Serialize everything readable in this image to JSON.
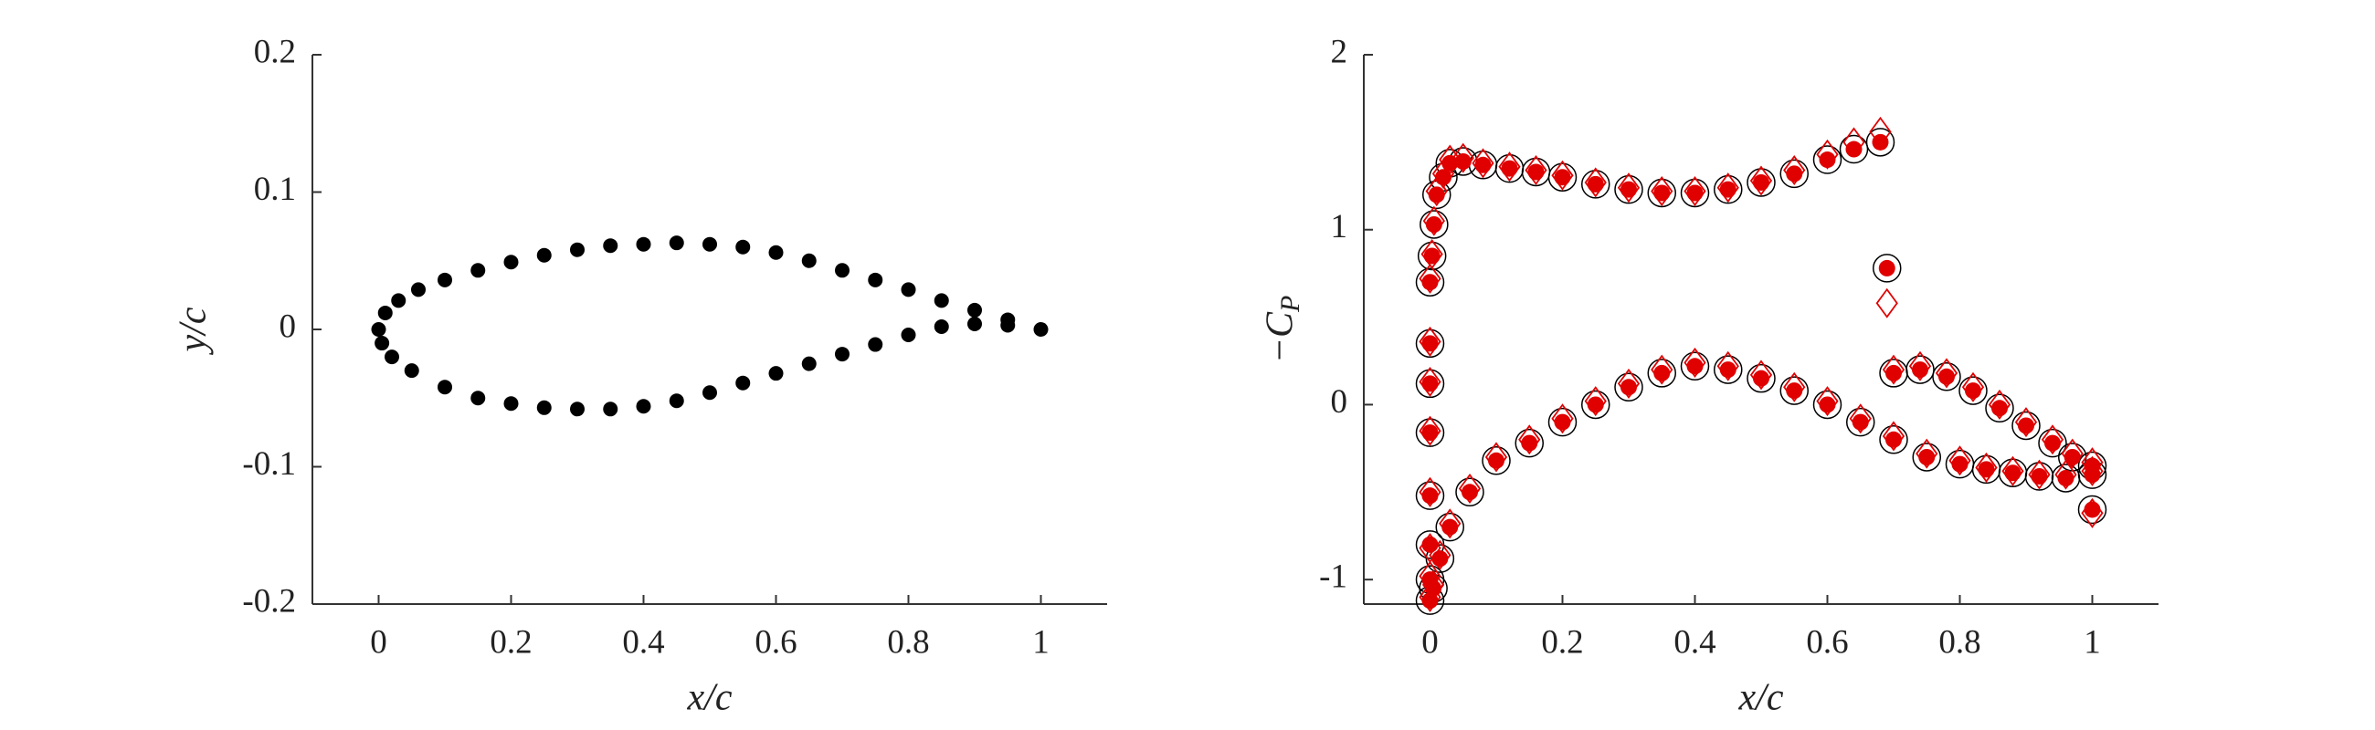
{
  "chart_data": [
    {
      "type": "scatter",
      "xlabel": "x/c",
      "ylabel": "y/c",
      "xlim": [
        -0.1,
        1.1
      ],
      "ylim": [
        -0.2,
        0.2
      ],
      "xticks": [
        0,
        0.2,
        0.4,
        0.6,
        0.8,
        1
      ],
      "yticks": [
        -0.2,
        -0.1,
        0,
        0.1,
        0.2
      ],
      "series": [
        {
          "color": "#000000",
          "marker": "dot",
          "x": [
            0,
            0.01,
            0.03,
            0.06,
            0.1,
            0.15,
            0.2,
            0.25,
            0.3,
            0.35,
            0.4,
            0.45,
            0.5,
            0.55,
            0.6,
            0.65,
            0.7,
            0.75,
            0.8,
            0.85,
            0.9,
            0.95,
            1.0
          ],
          "values": [
            0,
            0.012,
            0.021,
            0.029,
            0.036,
            0.043,
            0.049,
            0.054,
            0.058,
            0.061,
            0.062,
            0.063,
            0.062,
            0.06,
            0.056,
            0.05,
            0.043,
            0.036,
            0.029,
            0.021,
            0.014,
            0.007,
            0
          ]
        },
        {
          "color": "#000000",
          "marker": "dot",
          "x": [
            0.005,
            0.02,
            0.05,
            0.1,
            0.15,
            0.2,
            0.25,
            0.3,
            0.35,
            0.4,
            0.45,
            0.5,
            0.55,
            0.6,
            0.65,
            0.7,
            0.75,
            0.8,
            0.85,
            0.9,
            0.95
          ],
          "values": [
            -0.01,
            -0.02,
            -0.03,
            -0.042,
            -0.05,
            -0.054,
            -0.057,
            -0.058,
            -0.058,
            -0.056,
            -0.052,
            -0.046,
            -0.039,
            -0.032,
            -0.025,
            -0.018,
            -0.011,
            -0.004,
            0.002,
            0.004,
            0.003
          ]
        }
      ]
    },
    {
      "type": "scatter",
      "xlabel": "x/c",
      "ylabel": "−C",
      "ylabel_subscript": "P",
      "xlim": [
        -0.1,
        1.1
      ],
      "ylim": [
        -1.14,
        2
      ],
      "xticks": [
        0,
        0.2,
        0.4,
        0.6,
        0.8,
        1
      ],
      "yticks": [
        -1,
        0,
        1,
        2
      ],
      "x": [
        0,
        0,
        0,
        0,
        0,
        0,
        0,
        0,
        0.003,
        0.006,
        0.01,
        0.02,
        0.03,
        0.05,
        0.08,
        0.12,
        0.16,
        0.2,
        0.25,
        0.3,
        0.35,
        0.4,
        0.45,
        0.5,
        0.55,
        0.6,
        0.64,
        0.68,
        0.69,
        0.7,
        0.74,
        0.78,
        0.82,
        0.86,
        0.9,
        0.94,
        0.97,
        1.0,
        1.0,
        1.0,
        0.96,
        0.92,
        0.88,
        0.84,
        0.8,
        0.75,
        0.7,
        0.65,
        0.6,
        0.55,
        0.5,
        0.45,
        0.4,
        0.35,
        0.3,
        0.25,
        0.2,
        0.15,
        0.1,
        0.06,
        0.03,
        0.015,
        0.005
      ],
      "series": [
        {
          "color": "#000000",
          "marker": "circle",
          "values": [
            -1.12,
            -1.0,
            -0.8,
            -0.52,
            -0.16,
            0.12,
            0.35,
            0.7,
            0.85,
            1.03,
            1.2,
            1.3,
            1.38,
            1.39,
            1.37,
            1.35,
            1.33,
            1.3,
            1.26,
            1.23,
            1.21,
            1.21,
            1.23,
            1.27,
            1.32,
            1.4,
            1.46,
            1.5,
            0.78,
            0.18,
            0.2,
            0.16,
            0.08,
            -0.02,
            -0.12,
            -0.22,
            -0.3,
            -0.35,
            -0.6,
            -0.4,
            -0.42,
            -0.41,
            -0.39,
            -0.37,
            -0.34,
            -0.3,
            -0.2,
            -0.1,
            0,
            0.08,
            0.15,
            0.2,
            0.22,
            0.18,
            0.1,
            0,
            -0.1,
            -0.22,
            -0.32,
            -0.5,
            -0.7,
            -0.88,
            -1.05
          ]
        },
        {
          "color": "#e00000",
          "marker": "dot",
          "values": [
            -1.12,
            -1.0,
            -0.8,
            -0.52,
            -0.16,
            0.12,
            0.35,
            0.7,
            0.85,
            1.03,
            1.2,
            1.3,
            1.38,
            1.39,
            1.37,
            1.35,
            1.33,
            1.3,
            1.26,
            1.23,
            1.21,
            1.21,
            1.23,
            1.27,
            1.32,
            1.4,
            1.46,
            1.5,
            0.78,
            0.18,
            0.2,
            0.16,
            0.08,
            -0.02,
            -0.12,
            -0.22,
            -0.3,
            -0.35,
            -0.6,
            -0.4,
            -0.42,
            -0.41,
            -0.39,
            -0.37,
            -0.34,
            -0.3,
            -0.2,
            -0.1,
            0,
            0.08,
            0.15,
            0.2,
            0.22,
            0.18,
            0.1,
            0,
            -0.1,
            -0.22,
            -0.32,
            -0.5,
            -0.7,
            -0.88,
            -1.05
          ]
        },
        {
          "color": "#e00000",
          "marker": "diamond",
          "values": [
            -1.1,
            -0.98,
            -0.82,
            -0.5,
            -0.15,
            0.13,
            0.36,
            0.72,
            0.86,
            1.05,
            1.22,
            1.32,
            1.4,
            1.41,
            1.38,
            1.36,
            1.34,
            1.31,
            1.27,
            1.24,
            1.22,
            1.22,
            1.24,
            1.28,
            1.34,
            1.43,
            1.5,
            1.56,
            0.58,
            0.2,
            0.22,
            0.18,
            0.1,
            0,
            -0.1,
            -0.2,
            -0.28,
            -0.33,
            -0.62,
            -0.38,
            -0.4,
            -0.4,
            -0.38,
            -0.36,
            -0.32,
            -0.28,
            -0.18,
            -0.08,
            0.02,
            0.1,
            0.17,
            0.22,
            0.24,
            0.2,
            0.12,
            0.02,
            -0.08,
            -0.2,
            -0.3,
            -0.48,
            -0.68,
            -0.86,
            -1.03
          ]
        }
      ]
    }
  ]
}
